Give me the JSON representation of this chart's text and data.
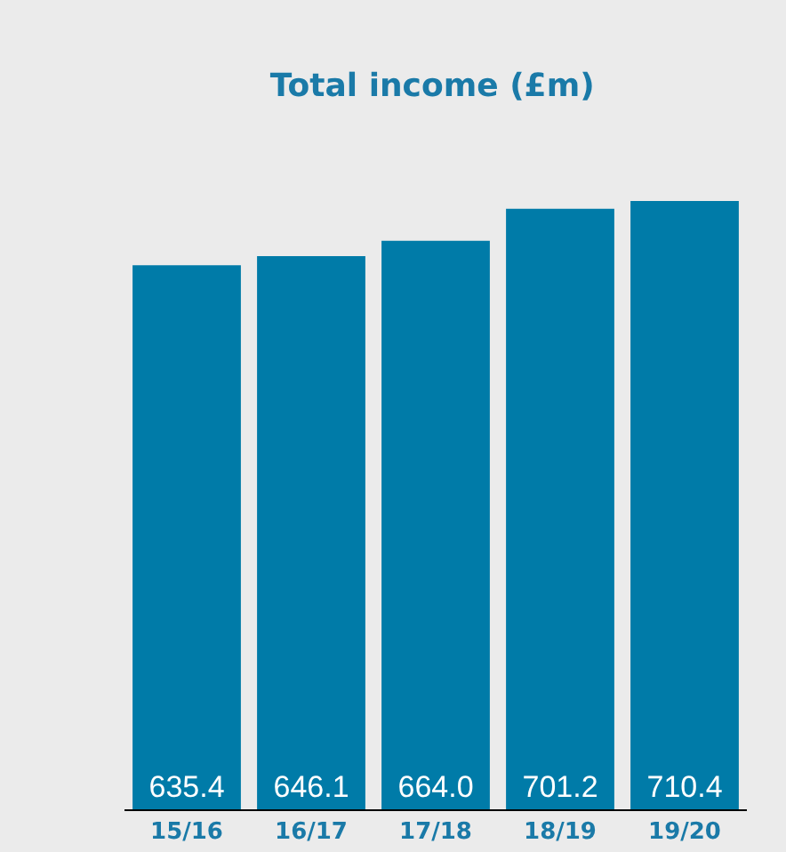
{
  "chart_data": {
    "type": "bar",
    "title": "Total income (£m)",
    "categories": [
      "15/16",
      "16/17",
      "17/18",
      "18/19",
      "19/20"
    ],
    "values": [
      635.4,
      646.1,
      664.0,
      701.2,
      710.4
    ],
    "value_labels": [
      "635.4",
      "646.1",
      "664.0",
      "701.2",
      "710.4"
    ],
    "color": "#007ba8",
    "tick_labels": "x",
    "grid": false,
    "legend": false
  }
}
